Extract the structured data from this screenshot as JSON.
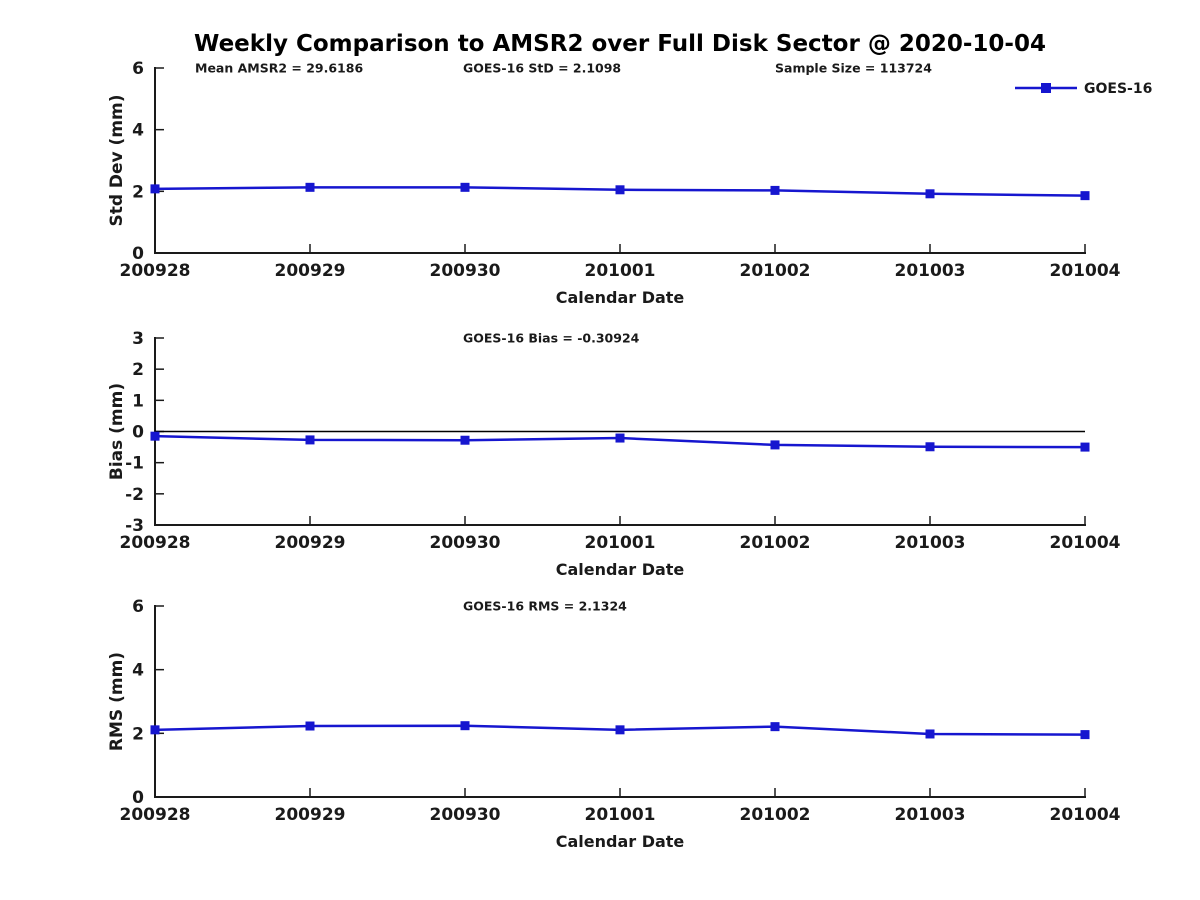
{
  "title": "Weekly Comparison to AMSR2 over Full Disk Sector @ 2020-10-04",
  "colors": {
    "series": "#1616cf",
    "axis": "#1a1a1a",
    "text": "#1a1a1a",
    "zero_line": "#000000"
  },
  "legend": {
    "label": "GOES-16"
  },
  "chart_data": [
    {
      "type": "line",
      "annotations": [
        "Mean AMSR2 = 29.6186",
        "GOES-16 StD = 2.1098",
        "Sample Size = 113724"
      ],
      "x": [
        "200928",
        "200929",
        "200930",
        "201001",
        "201002",
        "201003",
        "201004"
      ],
      "series": [
        {
          "name": "GOES-16",
          "values": [
            2.08,
            2.13,
            2.13,
            2.05,
            2.03,
            1.92,
            1.86
          ]
        }
      ],
      "xlabel": "Calendar Date",
      "ylabel": "Std Dev (mm)",
      "ylim": [
        0,
        6
      ],
      "yticks": [
        0,
        2,
        4,
        6
      ],
      "zero_line": false,
      "grid": false,
      "legend_position": "upper right"
    },
    {
      "type": "line",
      "annotations": [
        "GOES-16 Bias  = -0.30924"
      ],
      "x": [
        "200928",
        "200929",
        "200930",
        "201001",
        "201002",
        "201003",
        "201004"
      ],
      "series": [
        {
          "name": "GOES-16",
          "values": [
            -0.15,
            -0.27,
            -0.28,
            -0.21,
            -0.43,
            -0.49,
            -0.5
          ]
        }
      ],
      "xlabel": "Calendar Date",
      "ylabel": "Bias (mm)",
      "ylim": [
        -3,
        3
      ],
      "yticks": [
        -3,
        -2,
        -1,
        0,
        1,
        2,
        3
      ],
      "zero_line": true,
      "grid": false,
      "legend_position": "none"
    },
    {
      "type": "line",
      "annotations": [
        "GOES-16 RMS = 2.1324"
      ],
      "x": [
        "200928",
        "200929",
        "200930",
        "201001",
        "201002",
        "201003",
        "201004"
      ],
      "series": [
        {
          "name": "GOES-16",
          "values": [
            2.11,
            2.23,
            2.24,
            2.11,
            2.21,
            1.98,
            1.96
          ]
        }
      ],
      "xlabel": "Calendar Date",
      "ylabel": "RMS (mm)",
      "ylim": [
        0,
        6
      ],
      "yticks": [
        0,
        2,
        4,
        6
      ],
      "zero_line": false,
      "grid": false,
      "legend_position": "none"
    }
  ]
}
